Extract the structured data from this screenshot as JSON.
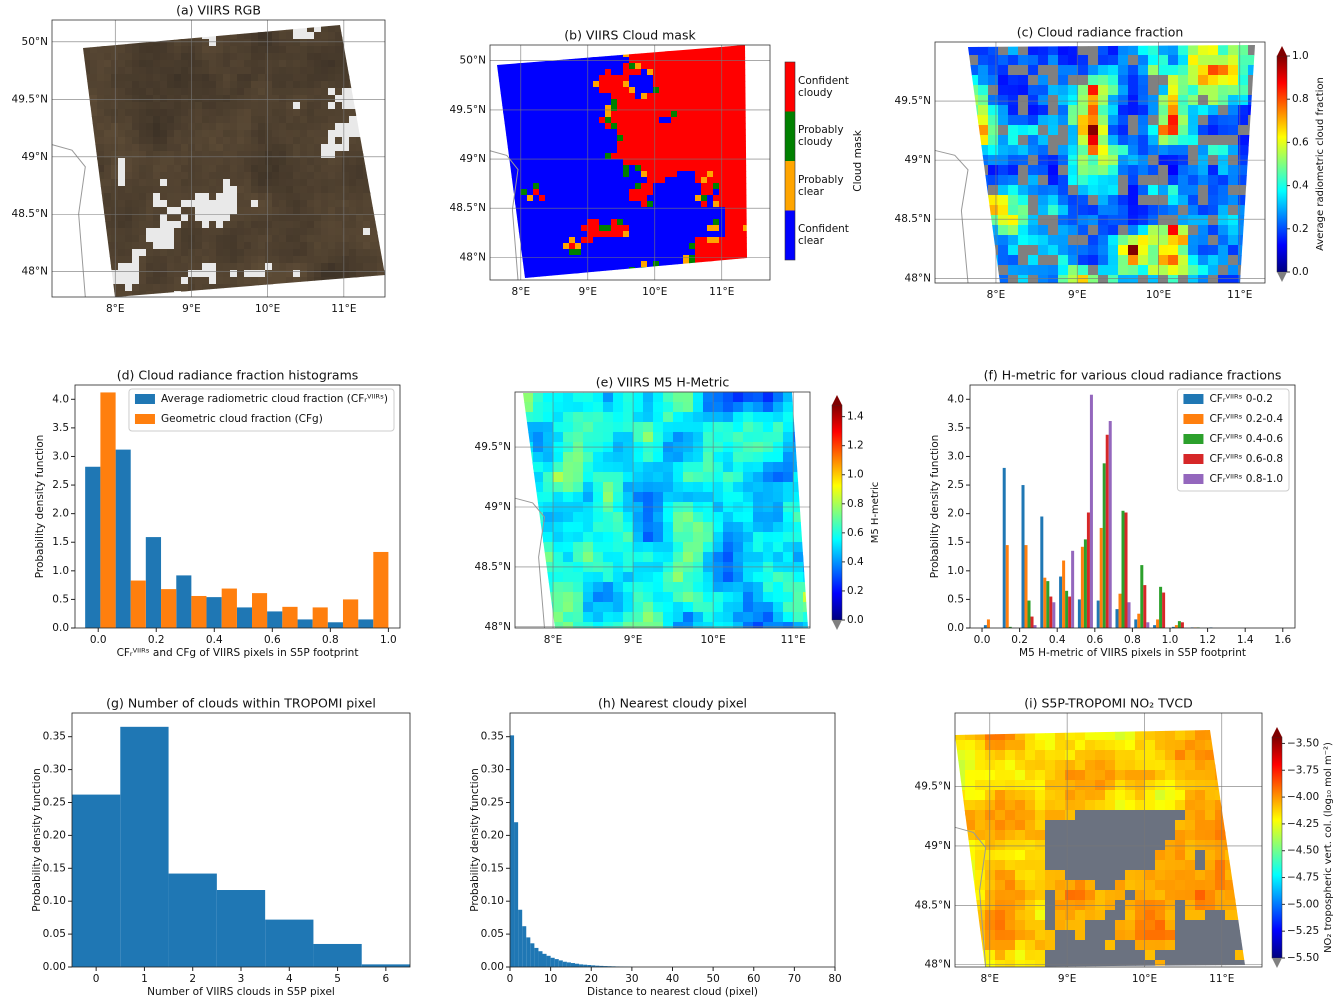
{
  "chart_data": [
    {
      "type": "map",
      "title": "(a) VIIRS RGB",
      "xlim": [
        7.17,
        11.54
      ],
      "ylim": [
        47.78,
        50.19
      ],
      "xticks": [
        {
          "value": 8,
          "label": "8°E"
        },
        {
          "value": 9,
          "label": "9°E"
        },
        {
          "value": 10,
          "label": "10°E"
        },
        {
          "value": 11,
          "label": "11°E"
        }
      ],
      "yticks": [
        {
          "value": 48,
          "label": "48°N"
        },
        {
          "value": 48.5,
          "label": "48.5°N"
        },
        {
          "value": 49,
          "label": "49°N"
        },
        {
          "value": 49.5,
          "label": "49.5°N"
        },
        {
          "value": 50,
          "label": "50°N"
        }
      ]
    },
    {
      "type": "map",
      "title": "(b) VIIRS Cloud mask",
      "xlim": [
        7.54,
        11.72
      ],
      "ylim": [
        47.77,
        50.16
      ],
      "xticks": [
        {
          "value": 8,
          "label": "8°E"
        },
        {
          "value": 9,
          "label": "9°E"
        },
        {
          "value": 10,
          "label": "10°E"
        },
        {
          "value": 11,
          "label": "11°E"
        }
      ],
      "yticks": [
        {
          "value": 48,
          "label": "48°N"
        },
        {
          "value": 48.5,
          "label": "48.5°N"
        },
        {
          "value": 49,
          "label": "49°N"
        },
        {
          "value": 49.5,
          "label": "49.5°N"
        },
        {
          "value": 50,
          "label": "50°N"
        }
      ],
      "colorbar": {
        "label": "Cloud mask",
        "categories": [
          "Confident cloudy",
          "Probably cloudy",
          "Probably clear",
          "Confident clear"
        ],
        "colors": [
          "#ff0000",
          "#008000",
          "#ffa500",
          "#0000ff"
        ]
      }
    },
    {
      "type": "map",
      "title": "(c) Cloud radiance fraction",
      "xlim": [
        7.25,
        11.31
      ],
      "ylim": [
        47.96,
        50.0
      ],
      "xticks": [
        {
          "value": 8,
          "label": "8°E"
        },
        {
          "value": 9,
          "label": "9°E"
        },
        {
          "value": 10,
          "label": "10°E"
        },
        {
          "value": 11,
          "label": "11°E"
        }
      ],
      "yticks": [
        {
          "value": 48,
          "label": "48°N"
        },
        {
          "value": 48.5,
          "label": "48.5°N"
        },
        {
          "value": 49,
          "label": "49°N"
        },
        {
          "value": 49.5,
          "label": "49.5°N"
        }
      ],
      "colorbar": {
        "label": "Average radiometric cloud fraction",
        "lim": [
          0,
          1
        ],
        "ticks": [
          {
            "value": 0,
            "label": "0.0"
          },
          0.2,
          0.4,
          0.6,
          0.8,
          {
            "value": 1,
            "label": "1.0"
          }
        ]
      }
    },
    {
      "type": "histogram",
      "title": "(d) Cloud radiance fraction histograms",
      "xlabel": "CFᵣⱽᴵᴵᴿˢ and CFg of VIIRS pixels in S5P footprint",
      "ylabel": "Probability density function",
      "bins": [
        -0.045,
        0.06,
        0.164,
        0.269,
        0.373,
        0.478,
        0.582,
        0.687,
        0.791,
        0.896,
        1.0
      ],
      "series": [
        {
          "name": "Average radiometric cloud fraction (CFᵣⱽᴵᴵᴿˢ)",
          "color": "#1f77b4",
          "values": [
            2.82,
            3.12,
            1.59,
            0.92,
            0.54,
            0.36,
            0.29,
            0.15,
            0.1,
            0.15
          ]
        },
        {
          "name": "Geometric cloud fraction (CFg)",
          "color": "#ff7f0e",
          "values": [
            4.12,
            0.83,
            0.68,
            0.56,
            0.69,
            0.61,
            0.37,
            0.36,
            0.5,
            1.33
          ]
        }
      ],
      "xlim": [
        -0.08,
        1.04
      ],
      "ylim": [
        0,
        4.25
      ],
      "xticks": [
        {
          "value": 0,
          "label": "0.0"
        },
        0.2,
        0.4,
        0.6,
        0.8,
        {
          "value": 1,
          "label": "1.0"
        }
      ],
      "yticks": [
        {
          "value": 0,
          "label": "0.0"
        },
        0.5,
        {
          "value": 1,
          "label": "1.0"
        },
        1.5,
        {
          "value": 2,
          "label": "2.0"
        },
        2.5,
        {
          "value": 3,
          "label": "3.0"
        },
        3.5,
        {
          "value": 4,
          "label": "4.0"
        }
      ],
      "legend": "upper right"
    },
    {
      "type": "map",
      "title": "(e) VIIRS M5 H-Metric",
      "xlim": [
        7.525,
        11.21
      ],
      "ylim": [
        47.99,
        49.96
      ],
      "xticks": [
        {
          "value": 8,
          "label": "8°E"
        },
        {
          "value": 9,
          "label": "9°E"
        },
        {
          "value": 10,
          "label": "10°E"
        },
        {
          "value": 11,
          "label": "11°E"
        }
      ],
      "yticks": [
        {
          "value": 48,
          "label": "48°N"
        },
        {
          "value": 48.5,
          "label": "48.5°N"
        },
        {
          "value": 49,
          "label": "49°N"
        },
        {
          "value": 49.5,
          "label": "49.5°N"
        }
      ],
      "colorbar": {
        "label": "M5 H-metric",
        "lim": [
          0,
          1.48
        ],
        "ticks": [
          {
            "value": 0,
            "label": "0.0"
          },
          0.2,
          0.4,
          0.6,
          0.8,
          {
            "value": 1,
            "label": "1.0"
          },
          1.2,
          1.4
        ]
      }
    },
    {
      "type": "histogram",
      "title": "(f) H-metric for various cloud radiance fractions",
      "xlabel": "M5 H-metric of VIIRS pixels in S5P footprint",
      "ylabel": "Probability density function",
      "bins": [
        0,
        0.1,
        0.2,
        0.3,
        0.4,
        0.5,
        0.6,
        0.7,
        0.8,
        0.9,
        1.0,
        1.1,
        1.2,
        1.3
      ],
      "series": [
        {
          "name": "CFᵣⱽᴵᴵᴿˢ 0-0.2",
          "color": "#1f77b4",
          "values": [
            0.05,
            2.8,
            2.5,
            1.95,
            0.9,
            0.5,
            0.48,
            0.33,
            0.15,
            0.05,
            0.02,
            0.01,
            0.01
          ]
        },
        {
          "name": "CFᵣⱽᴵᴵᴿˢ 0.2-0.4",
          "color": "#ff7f0e",
          "values": [
            0.15,
            1.45,
            1.45,
            0.88,
            1.18,
            1.42,
            1.75,
            0.6,
            0.25,
            0.15,
            0.05,
            0.01,
            0
          ]
        },
        {
          "name": "CFᵣⱽᴵᴵᴿˢ 0.4-0.6",
          "color": "#2ca02c",
          "values": [
            0,
            0.02,
            0.48,
            0.82,
            0.65,
            1.55,
            2.88,
            2.05,
            1.1,
            0.72,
            0.12,
            0.01,
            0
          ]
        },
        {
          "name": "CFᵣⱽᴵᴵᴿˢ 0.6-0.8",
          "color": "#d62728",
          "values": [
            0,
            0,
            0.2,
            0.55,
            0.55,
            2.02,
            3.38,
            2.02,
            0.75,
            0.62,
            0.1,
            0,
            0
          ]
        },
        {
          "name": "CFᵣⱽᴵᴵᴿˢ 0.8-1.0",
          "color": "#9467bd",
          "values": [
            0,
            0,
            0.05,
            0.45,
            1.35,
            4.08,
            3.62,
            0.45,
            0.1,
            0,
            0,
            0,
            0
          ]
        }
      ],
      "xlim": [
        -0.064,
        1.665
      ],
      "ylim": [
        0,
        4.25
      ],
      "xticks": [
        {
          "value": 0,
          "label": "0.0"
        },
        0.2,
        0.4,
        0.6,
        0.8,
        {
          "value": 1,
          "label": "1.0"
        },
        1.2,
        1.4,
        1.6
      ],
      "yticks": [
        {
          "value": 0,
          "label": "0.0"
        },
        0.5,
        {
          "value": 1,
          "label": "1.0"
        },
        1.5,
        {
          "value": 2,
          "label": "2.0"
        },
        2.5,
        {
          "value": 3,
          "label": "3.0"
        },
        3.5,
        {
          "value": 4,
          "label": "4.0"
        }
      ],
      "legend": "upper right"
    },
    {
      "type": "histogram",
      "title": "(g) Number of clouds within TROPOMI pixel",
      "xlabel": "Number of VIIRS clouds in S5P pixel",
      "ylabel": "Probability density function",
      "bins": [
        -0.5,
        0.5,
        1.5,
        2.5,
        3.5,
        4.5,
        5.5,
        6.5
      ],
      "color": "#1f77b4",
      "values": [
        0.262,
        0.365,
        0.142,
        0.117,
        0.072,
        0.035,
        0.004
      ],
      "xlim": [
        -0.5,
        6.5
      ],
      "ylim": [
        0,
        0.386
      ],
      "xticks": [
        0,
        1,
        2,
        3,
        4,
        5,
        6
      ],
      "yticks": [
        {
          "value": 0,
          "label": "0.00"
        },
        0.05,
        {
          "value": 0.1,
          "label": "0.10"
        },
        0.15,
        {
          "value": 0.2,
          "label": "0.20"
        },
        0.25,
        {
          "value": 0.3,
          "label": "0.30"
        },
        0.35
      ]
    },
    {
      "type": "histogram",
      "title": "(h) Nearest cloudy pixel",
      "xlabel": "Distance to nearest cloud (pixel)",
      "ylabel": "Probability density function",
      "bins": [
        0,
        1,
        2,
        3,
        4,
        5,
        6,
        7,
        8,
        9,
        10,
        11,
        12,
        13,
        14,
        15,
        16,
        17,
        18,
        19,
        20,
        21,
        22,
        23,
        24,
        25,
        26,
        27,
        28,
        29,
        30
      ],
      "color": "#1f77b4",
      "values": [
        0.352,
        0.22,
        0.087,
        0.062,
        0.045,
        0.036,
        0.029,
        0.024,
        0.02,
        0.017,
        0.014,
        0.012,
        0.01,
        0.008,
        0.007,
        0.006,
        0.005,
        0.004,
        0.0035,
        0.003,
        0.0025,
        0.002,
        0.0017,
        0.0014,
        0.0012,
        0.001,
        0.0008,
        0.0006,
        0.0005,
        0.0004
      ],
      "xlim": [
        0,
        80
      ],
      "ylim": [
        0,
        0.386
      ],
      "xticks": [
        0,
        10,
        20,
        30,
        40,
        50,
        60,
        70,
        80
      ],
      "yticks": [
        {
          "value": 0,
          "label": "0.00"
        },
        0.05,
        {
          "value": 0.1,
          "label": "0.10"
        },
        0.15,
        {
          "value": 0.2,
          "label": "0.20"
        },
        0.25,
        {
          "value": 0.3,
          "label": "0.30"
        },
        0.35
      ]
    },
    {
      "type": "map",
      "title": "(i) S5P-TROPOMI NO₂ TVCD",
      "xlim": [
        7.55,
        11.52
      ],
      "ylim": [
        47.98,
        50.12
      ],
      "xticks": [
        {
          "value": 8,
          "label": "8°E"
        },
        {
          "value": 9,
          "label": "9°E"
        },
        {
          "value": 10,
          "label": "10°E"
        },
        {
          "value": 11,
          "label": "11°E"
        }
      ],
      "yticks": [
        {
          "value": 48,
          "label": "48°N"
        },
        {
          "value": 48.5,
          "label": "48.5°N"
        },
        {
          "value": 49,
          "label": "49°N"
        },
        {
          "value": 49.5,
          "label": "49.5°N"
        }
      ],
      "colorbar": {
        "label": "NO₂ tropospheric vert. col. (log₁₀ mol m⁻²)",
        "lim": [
          -5.5,
          -3.44
        ],
        "ticks": [
          {
            "value": -5.5,
            "label": "−5.50"
          },
          {
            "value": -5.25,
            "label": "−5.25"
          },
          {
            "value": -5,
            "label": "−5.00"
          },
          {
            "value": -4.75,
            "label": "−4.75"
          },
          {
            "value": -4.5,
            "label": "−4.50"
          },
          {
            "value": -4.25,
            "label": "−4.25"
          },
          {
            "value": -4,
            "label": "−4.00"
          },
          {
            "value": -3.75,
            "label": "−3.75"
          },
          {
            "value": -3.5,
            "label": "−3.50"
          }
        ]
      }
    }
  ]
}
